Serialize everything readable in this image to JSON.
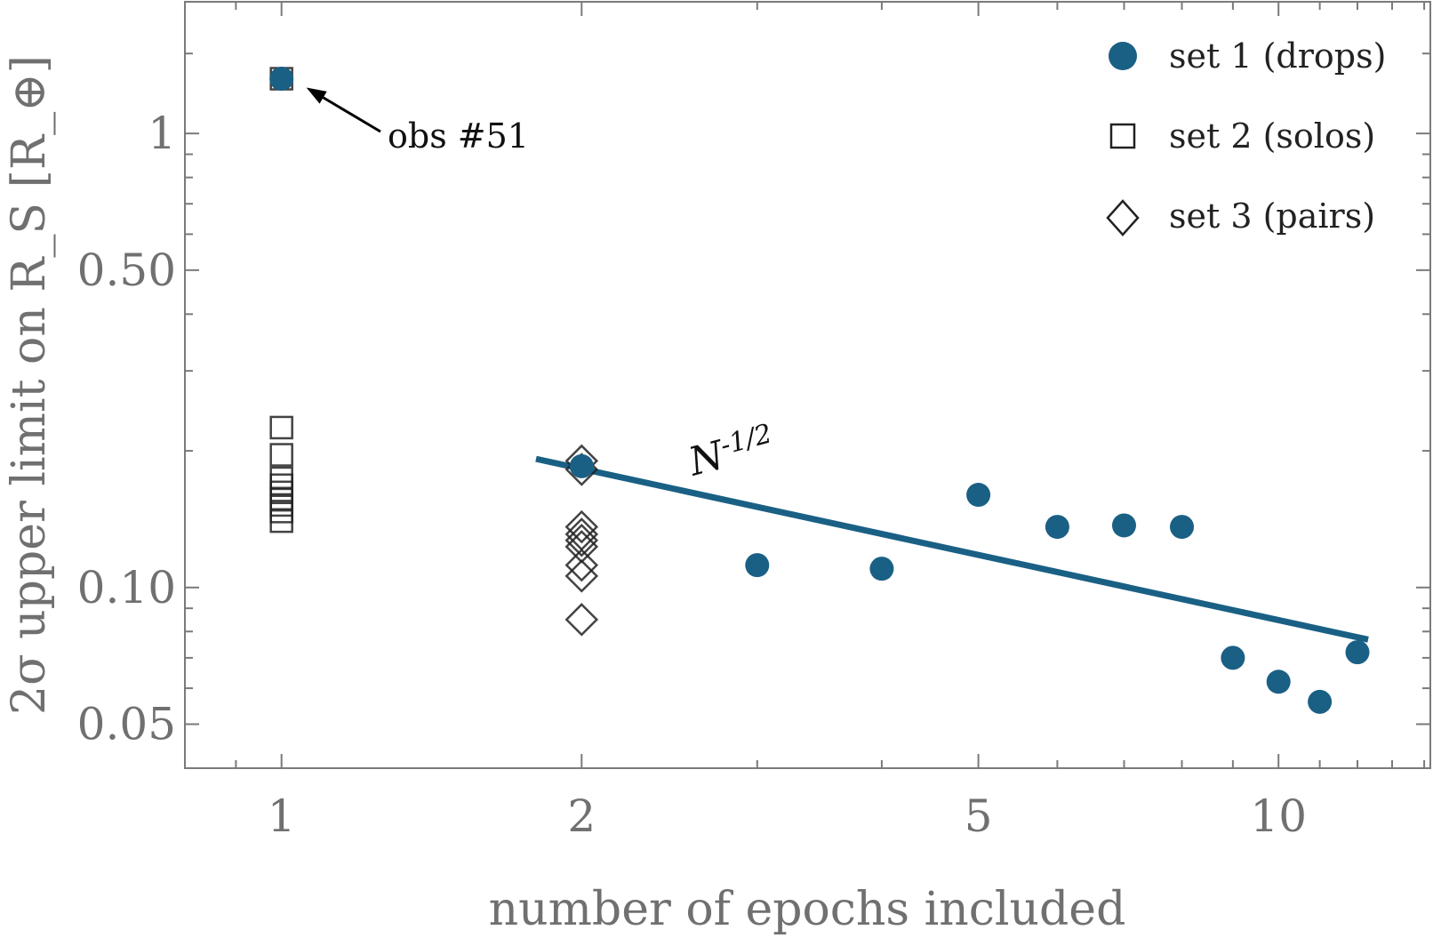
{
  "chart_data": {
    "type": "scatter",
    "xlabel": "number of epochs included",
    "ylabel": "2σ upper limit on R_S [R_⊕]",
    "xscale": "log",
    "yscale": "log",
    "xlim": [
      0.8,
      14.2
    ],
    "ylim": [
      0.04,
      1.95
    ],
    "x_ticks": [
      1,
      2,
      5,
      10
    ],
    "x_tick_labels": [
      "1",
      "2",
      "5",
      "10"
    ],
    "y_ticks": [
      0.05,
      0.1,
      0.5,
      1
    ],
    "y_tick_labels": [
      "0.05",
      "0.10",
      "0.50",
      "1"
    ],
    "grid": false,
    "legend_position": "top-right",
    "series": [
      {
        "name": "set 1 (drops)",
        "marker": "filled-circle",
        "color": "#1a6085",
        "x": [
          1,
          2,
          3,
          4,
          5,
          6,
          7,
          8,
          9,
          10,
          11,
          12
        ],
        "y": [
          1.32,
          0.185,
          0.112,
          0.11,
          0.16,
          0.136,
          0.137,
          0.136,
          0.07,
          0.062,
          0.056,
          0.072
        ]
      },
      {
        "name": "set 2 (solos)",
        "marker": "open-square",
        "color": "#222222",
        "x": [
          1,
          1,
          1,
          1,
          1,
          1,
          1,
          1,
          1,
          1
        ],
        "y": [
          1.32,
          0.225,
          0.196,
          0.174,
          0.168,
          0.162,
          0.157,
          0.152,
          0.147,
          0.14
        ]
      },
      {
        "name": "set 3 (pairs)",
        "marker": "open-diamond",
        "color": "#222222",
        "x": [
          2,
          2,
          2,
          2,
          2,
          2,
          2,
          2,
          2
        ],
        "y": [
          0.19,
          0.182,
          0.136,
          0.131,
          0.127,
          0.123,
          0.112,
          0.106,
          0.085
        ]
      }
    ],
    "fit_line": {
      "label": "N",
      "label_exponent": "-1/2",
      "color": "#1a6085",
      "x": [
        1.8,
        12.3
      ],
      "y": [
        0.192,
        0.0768
      ]
    },
    "annotations": [
      {
        "text": "obs #51",
        "points_to": {
          "x": 1,
          "y": 1.32
        }
      }
    ]
  }
}
